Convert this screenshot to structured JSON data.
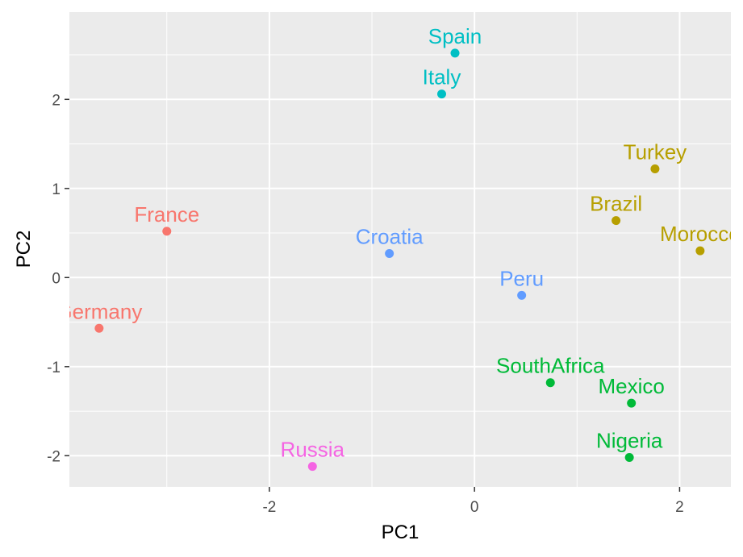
{
  "chart_data": {
    "type": "scatter",
    "xlabel": "PC1",
    "ylabel": "PC2",
    "xlim": [
      -3.95,
      2.5
    ],
    "ylim": [
      -2.35,
      2.98
    ],
    "x_ticks": [
      -2,
      0,
      2
    ],
    "y_ticks": [
      -2,
      -1,
      0,
      1,
      2
    ],
    "x_tick_labels": [
      "-2",
      "0",
      "2"
    ],
    "y_tick_labels": [
      "-2",
      "-1",
      "0",
      "1",
      "2"
    ],
    "grid": true,
    "legend": "none",
    "panel_background": "#ebebeb",
    "grid_color": "#ffffff",
    "points": [
      {
        "label": "Spain",
        "x": -0.19,
        "y": 2.52,
        "color": "#00BFC4"
      },
      {
        "label": "Italy",
        "x": -0.32,
        "y": 2.06,
        "color": "#00BFC4"
      },
      {
        "label": "Turkey",
        "x": 1.76,
        "y": 1.22,
        "color": "#B79F00"
      },
      {
        "label": "Brazil",
        "x": 1.38,
        "y": 0.64,
        "color": "#B79F00"
      },
      {
        "label": "Morocco",
        "x": 2.2,
        "y": 0.3,
        "color": "#B79F00"
      },
      {
        "label": "France",
        "x": -3.0,
        "y": 0.52,
        "color": "#F8766D"
      },
      {
        "label": "Germany",
        "x": -3.66,
        "y": -0.57,
        "color": "#F8766D"
      },
      {
        "label": "Croatia",
        "x": -0.83,
        "y": 0.27,
        "color": "#619CFF"
      },
      {
        "label": "Peru",
        "x": 0.46,
        "y": -0.2,
        "color": "#619CFF"
      },
      {
        "label": "SouthAfrica",
        "x": 0.74,
        "y": -1.18,
        "color": "#00BA38"
      },
      {
        "label": "Mexico",
        "x": 1.53,
        "y": -1.41,
        "color": "#00BA38"
      },
      {
        "label": "Nigeria",
        "x": 1.51,
        "y": -2.02,
        "color": "#00BA38"
      },
      {
        "label": "Russia",
        "x": -1.58,
        "y": -2.12,
        "color": "#F564E3"
      }
    ]
  }
}
